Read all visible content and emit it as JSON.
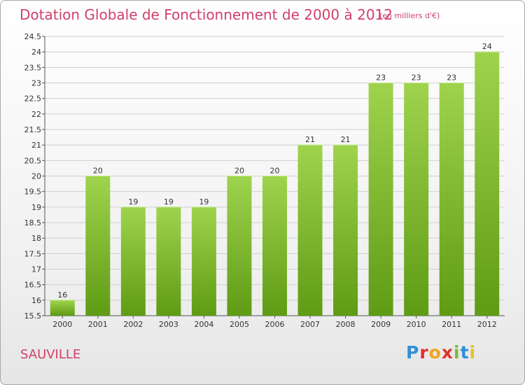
{
  "header": {
    "title": "Dotation Globale de Fonctionnement de 2000 à 2012",
    "subtitle": "(en milliers d'€)"
  },
  "footer": {
    "commune": "SAUVILLE",
    "logo_letters": [
      "P",
      "r",
      "o",
      "x",
      "i",
      "t",
      "i"
    ]
  },
  "colors": {
    "title": "#d0406a",
    "bar_top": "#9fd34e",
    "bar_bottom": "#5f9b14",
    "grid": "#cfcfcf"
  },
  "chart_data": {
    "type": "bar",
    "categories": [
      "2000",
      "2001",
      "2002",
      "2003",
      "2004",
      "2005",
      "2006",
      "2007",
      "2008",
      "2009",
      "2010",
      "2011",
      "2012"
    ],
    "values": [
      16,
      20,
      19,
      19,
      19,
      20,
      20,
      21,
      21,
      23,
      23,
      23,
      24
    ],
    "data_labels": [
      "16",
      "20",
      "19",
      "19",
      "19",
      "20",
      "20",
      "21",
      "21",
      "23",
      "23",
      "23",
      "24"
    ],
    "title": "Dotation Globale de Fonctionnement de 2000 à 2012",
    "subtitle": "(en milliers d'€)",
    "xlabel": "",
    "ylabel": "",
    "ylim": [
      15.5,
      24.5
    ],
    "yticks": [
      15.5,
      16,
      16.5,
      17,
      17.5,
      18,
      18.5,
      19,
      19.5,
      20,
      20.5,
      21,
      21.5,
      22,
      22.5,
      23,
      23.5,
      24,
      24.5
    ],
    "ytick_labels": [
      "15.5",
      "16",
      "16.5",
      "17",
      "17.5",
      "18",
      "18.5",
      "19",
      "19.5",
      "20",
      "20.5",
      "21",
      "21.5",
      "22",
      "22.5",
      "23",
      "23.5",
      "24",
      "24.5"
    ],
    "grid": true,
    "legend": "none"
  }
}
